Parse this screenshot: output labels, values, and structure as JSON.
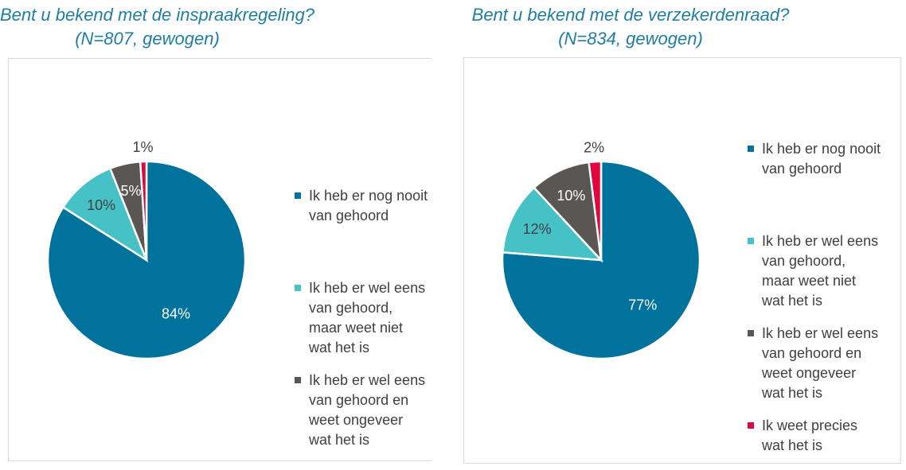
{
  "chart_data": [
    {
      "type": "pie",
      "title": "Bent u bekend met de inspraakregeling?",
      "subtitle": "(N=807, gewogen)",
      "slices": [
        {
          "label": "Ik heb er nog nooit van gehoord",
          "value": 84,
          "data_label": "84%",
          "color": "#00729b",
          "label_color": "#ffffff",
          "legend": true
        },
        {
          "label": "Ik heb er wel eens van gehoord, maar weet niet wat het is",
          "value": 10,
          "data_label": "10%",
          "color": "#46c2c7",
          "label_color": "#404040",
          "legend": true
        },
        {
          "label": "Ik heb er wel eens van gehoord en weet ongeveer wat het is",
          "value": 5,
          "data_label": "5%",
          "color": "#595654",
          "label_color": "#ffffff",
          "legend": true
        },
        {
          "label": "Ik weet precies wat het is",
          "value": 1,
          "data_label": "1%",
          "color": "#e0073e",
          "label_color": "#404040",
          "legend": false
        }
      ],
      "legend_position": "right"
    },
    {
      "type": "pie",
      "title": "Bent u bekend met de verzekerdenraad?",
      "subtitle": "(N=834, gewogen)",
      "slices": [
        {
          "label": "Ik heb er nog nooit van gehoord",
          "value": 77,
          "data_label": "77%",
          "color": "#00729b",
          "label_color": "#ffffff",
          "legend": true
        },
        {
          "label": "Ik heb er wel eens van gehoord, maar weet niet wat het is",
          "value": 12,
          "data_label": "12%",
          "color": "#46c2c7",
          "label_color": "#404040",
          "legend": true
        },
        {
          "label": "Ik heb er wel eens van gehoord en weet ongeveer wat het is",
          "value": 10,
          "data_label": "10%",
          "color": "#595654",
          "label_color": "#ffffff",
          "legend": true
        },
        {
          "label": "Ik weet precies wat het is",
          "value": 2,
          "data_label": "2%",
          "color": "#e0073e",
          "label_color": "#404040",
          "legend": true
        }
      ],
      "legend_position": "right"
    }
  ],
  "legend_left": {
    "items": [
      {
        "text": "Ik heb er nog nooit van gehoord",
        "color": "#00729b"
      },
      {
        "text": "Ik heb er wel eens van gehoord, maar weet niet wat het is",
        "color": "#46c2c7"
      },
      {
        "text": "Ik heb er wel eens van gehoord en weet ongeveer wat het is",
        "color": "#595654"
      }
    ]
  },
  "legend_right": {
    "items": [
      {
        "text": "Ik heb er nog nooit van gehoord",
        "color": "#00729b"
      },
      {
        "text": "Ik heb er wel eens van gehoord, maar weet niet wat het is",
        "color": "#46c2c7"
      },
      {
        "text": "Ik heb er wel eens van gehoord en weet ongeveer wat het is",
        "color": "#595654"
      },
      {
        "text": "Ik weet precies wat het is",
        "color": "#e0073e"
      }
    ]
  }
}
